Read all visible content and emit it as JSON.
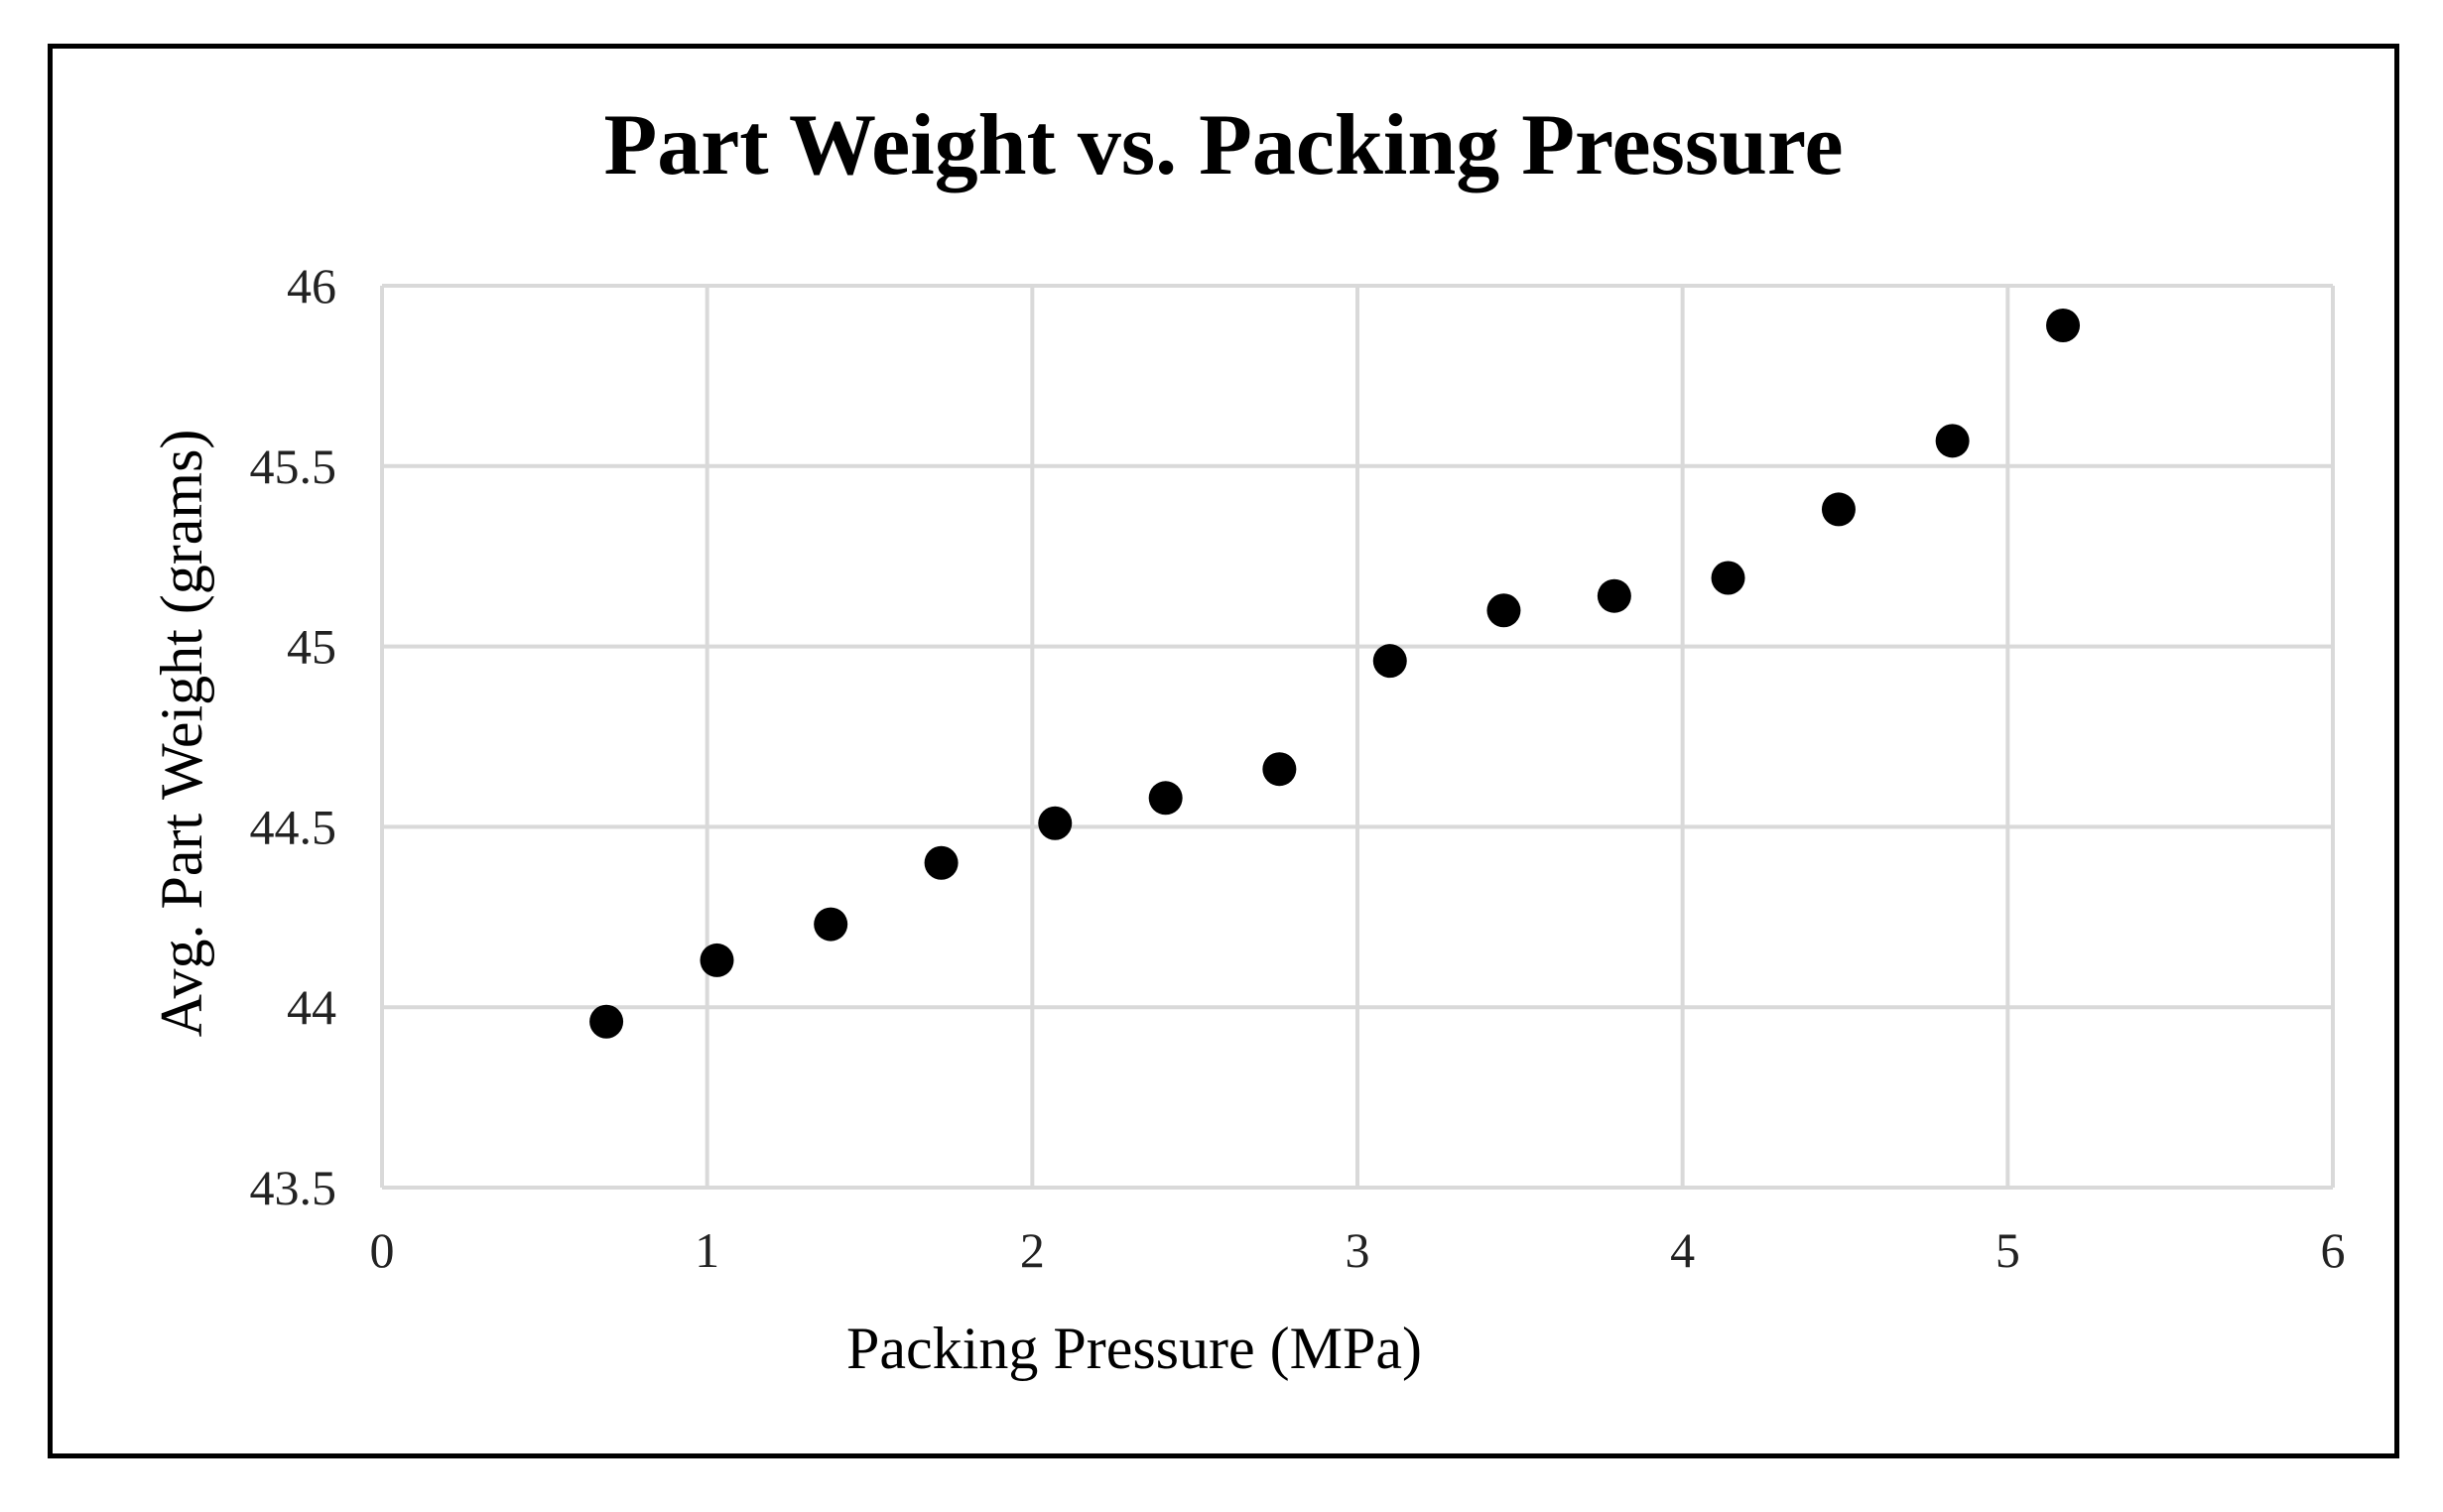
{
  "chart_data": {
    "type": "scatter",
    "title": "Part Weight vs. Packing Pressure",
    "xlabel": "Packing Pressure (MPa)",
    "ylabel": "Avg. Part Weight (grams)",
    "xlim": [
      0,
      6
    ],
    "ylim": [
      43.5,
      46
    ],
    "xticks": [
      0,
      1,
      2,
      3,
      4,
      5,
      6
    ],
    "yticks": [
      43.5,
      44,
      44.5,
      45,
      45.5,
      46
    ],
    "xtick_labels": [
      "0",
      "1",
      "2",
      "3",
      "4",
      "5",
      "6"
    ],
    "ytick_labels": [
      "43.5",
      "44",
      "44.5",
      "45",
      "45.5",
      "46"
    ],
    "grid": true,
    "legend": "none",
    "series": [
      {
        "name": "Avg. Part Weight",
        "color": "#000000",
        "x": [
          0.69,
          1.03,
          1.38,
          1.72,
          2.07,
          2.41,
          2.76,
          3.1,
          3.45,
          3.79,
          4.14,
          4.48,
          4.83,
          5.17
        ],
        "y": [
          43.96,
          44.13,
          44.23,
          44.4,
          44.51,
          44.58,
          44.66,
          44.96,
          45.1,
          45.14,
          45.19,
          45.38,
          45.57,
          45.89
        ]
      }
    ]
  }
}
